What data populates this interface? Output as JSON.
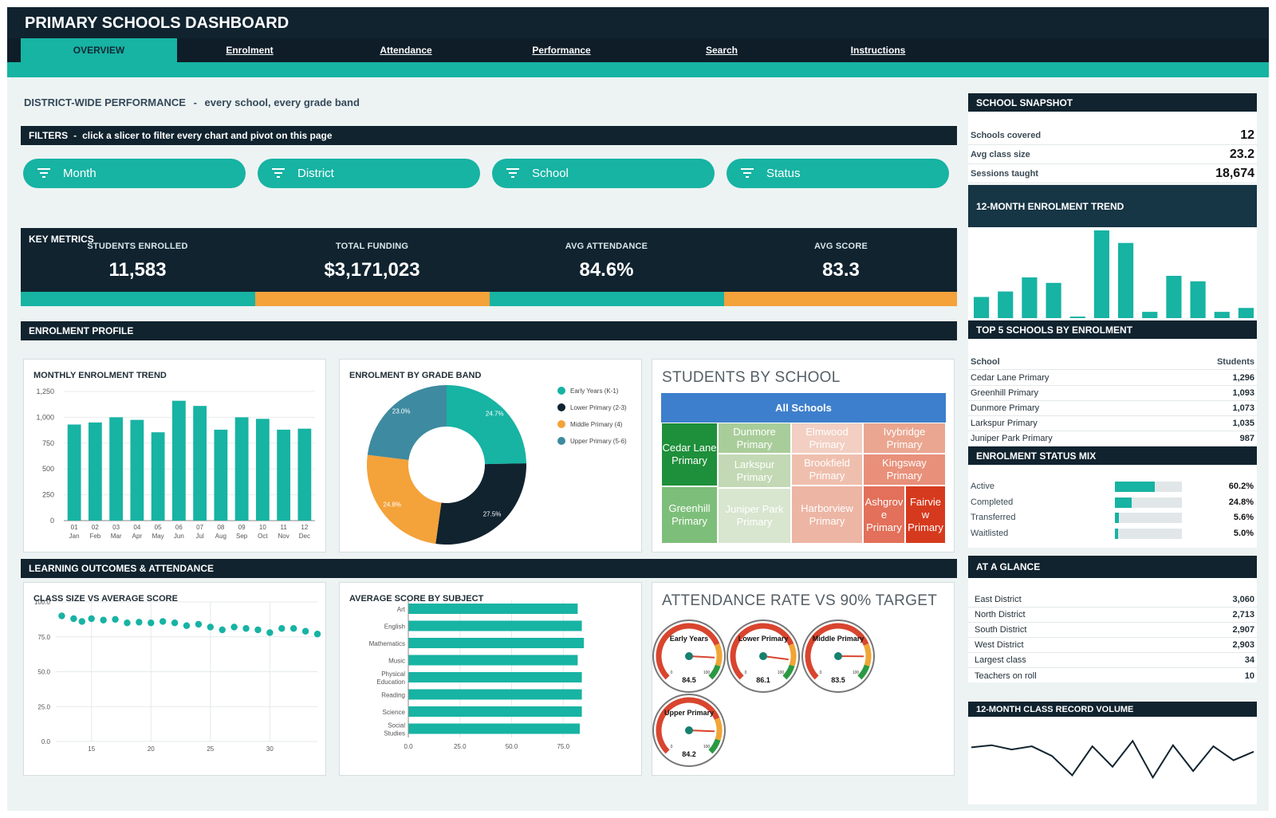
{
  "app": {
    "title": "PRIMARY SCHOOLS DASHBOARD"
  },
  "nav": {
    "tabs": [
      {
        "label": "OVERVIEW",
        "active": true
      },
      {
        "label": "Enrolment"
      },
      {
        "label": "Attendance"
      },
      {
        "label": "Performance"
      },
      {
        "label": "Search"
      },
      {
        "label": "Instructions"
      }
    ]
  },
  "page": {
    "heading": "DISTRICT-WIDE PERFORMANCE",
    "subheading": "every school, every grade band"
  },
  "filters": {
    "title": "FILTERS",
    "hint": "click a slicer to filter every chart and pivot on this page",
    "slicers": [
      "Month",
      "District",
      "School",
      "Status"
    ]
  },
  "key_metrics": {
    "title": "KEY METRICS",
    "items": [
      {
        "label": "STUDENTS ENROLLED",
        "value": "11,583"
      },
      {
        "label": "TOTAL FUNDING",
        "value": "$3,171,023"
      },
      {
        "label": "AVG ATTENDANCE",
        "value": "84.6%"
      },
      {
        "label": "AVG SCORE",
        "value": "83.3"
      }
    ],
    "band_colors": [
      "#17b3a3",
      "#f4a23a",
      "#17b3a3",
      "#f4a23a"
    ]
  },
  "sections": {
    "enrolment_profile": "ENROLMENT PROFILE",
    "learning": "LEARNING OUTCOMES & ATTENDANCE"
  },
  "colors": {
    "teal": "#17b3a3",
    "navy": "#10232f",
    "orange": "#f4a23a",
    "slate": "#3e8aa0"
  },
  "chart_data": [
    {
      "id": "monthly",
      "type": "bar",
      "title": "MONTHLY ENROLMENT TREND",
      "categories": [
        "01",
        "02",
        "03",
        "04",
        "05",
        "06",
        "07",
        "08",
        "09",
        "10",
        "11",
        "12"
      ],
      "sublabels": [
        "Jan",
        "Feb",
        "Mar",
        "Apr",
        "May",
        "Jun",
        "Jul",
        "Aug",
        "Sep",
        "Oct",
        "Nov",
        "Dec"
      ],
      "values": [
        930,
        950,
        1000,
        975,
        855,
        1160,
        1110,
        880,
        1000,
        985,
        880,
        890
      ],
      "ylim": [
        0,
        1250
      ],
      "yticks": [
        "0",
        "250",
        "500",
        "750",
        "1,000",
        "1,250"
      ]
    },
    {
      "id": "gradeband",
      "type": "pie",
      "title": "ENROLMENT BY GRADE BAND",
      "slices": [
        {
          "name": "Early Years (K-1)",
          "value": 24.7,
          "label": "24.7%",
          "color": "#17b3a3"
        },
        {
          "name": "Lower Primary (2-3)",
          "value": 27.5,
          "label": "27.5%",
          "color": "#10232f"
        },
        {
          "name": "Middle Primary (4)",
          "value": 24.8,
          "label": "24.8%",
          "color": "#f4a23a"
        },
        {
          "name": "Upper Primary (5-6)",
          "value": 23.0,
          "label": "23.0%",
          "color": "#3e8aa0"
        }
      ]
    },
    {
      "id": "treemap",
      "type": "treemap",
      "title": "STUDENTS BY SCHOOL",
      "root": "All Schools",
      "items": [
        {
          "name": "Cedar Lane Primary",
          "color": "#1e8f3a"
        },
        {
          "name": "Greenhill Primary",
          "color": "#7dbf7a"
        },
        {
          "name": "Dunmore Primary",
          "color": "#a9cd9a"
        },
        {
          "name": "Larkspur Primary",
          "color": "#c3d9b5"
        },
        {
          "name": "Juniper Park Primary",
          "color": "#d8e5cf"
        },
        {
          "name": "Elmwood Primary",
          "color": "#f2cfc2"
        },
        {
          "name": "Brookfield Primary",
          "color": "#efbfae"
        },
        {
          "name": "Harborview Primary",
          "color": "#edb5a4"
        },
        {
          "name": "Ivybridge Primary",
          "color": "#eaa690"
        },
        {
          "name": "Kingsway Primary",
          "color": "#e8907a"
        },
        {
          "name": "Ashgrove Primary",
          "label_lines": [
            "Ashgrov",
            "e",
            "Primary"
          ],
          "color": "#e2705a"
        },
        {
          "name": "Fairview Primary",
          "label_lines": [
            "Fairvie",
            "w",
            "Primary"
          ],
          "color": "#d63a1e"
        }
      ]
    },
    {
      "id": "scatter",
      "type": "scatter",
      "title": "CLASS SIZE VS AVERAGE SCORE",
      "xlim": [
        12,
        34
      ],
      "ylim": [
        0,
        100
      ],
      "xticks": [
        15,
        20,
        25,
        30
      ],
      "yticks": [
        "0.0",
        "25.0",
        "50.0",
        "75.0",
        "100.0"
      ],
      "points": [
        [
          12.5,
          90
        ],
        [
          13.5,
          88
        ],
        [
          14.2,
          86
        ],
        [
          15,
          88
        ],
        [
          16,
          87
        ],
        [
          17,
          87.5
        ],
        [
          18,
          85
        ],
        [
          19,
          85.5
        ],
        [
          20,
          85
        ],
        [
          21,
          86
        ],
        [
          22,
          85
        ],
        [
          23,
          83
        ],
        [
          24,
          84
        ],
        [
          25,
          82
        ],
        [
          26,
          80
        ],
        [
          27,
          82
        ],
        [
          28,
          81
        ],
        [
          29,
          80
        ],
        [
          30,
          78
        ],
        [
          31,
          81
        ],
        [
          32,
          81
        ],
        [
          33,
          79
        ],
        [
          34,
          77
        ]
      ]
    },
    {
      "id": "subjects",
      "type": "bar",
      "orientation": "horizontal",
      "title": "AVERAGE SCORE BY SUBJECT",
      "categories": [
        "Art",
        "English",
        "Mathematics",
        "Music",
        "Physical Education",
        "Reading",
        "Science",
        "Social Studies"
      ],
      "values": [
        82,
        84,
        85,
        82,
        84,
        84,
        84,
        83
      ],
      "xlim": [
        0,
        100
      ],
      "xticks": [
        "0.0",
        "25.0",
        "50.0",
        "75.0"
      ]
    },
    {
      "id": "gauges",
      "type": "gauge",
      "title": "ATTENDANCE RATE VS 90% TARGET",
      "target": 90,
      "items": [
        {
          "name": "Early Years",
          "value": 84.5,
          "display": "84.5"
        },
        {
          "name": "Lower Primary",
          "value": 86.1,
          "display": "86.1"
        },
        {
          "name": "Middle Primary",
          "value": 83.5,
          "display": "83.5"
        },
        {
          "name": "Upper Primary",
          "value": 84.2,
          "display": "84.2"
        }
      ],
      "scale_min": "0",
      "scale_max": "100"
    },
    {
      "id": "enrol_trend",
      "type": "bar",
      "title": "12-MONTH ENROLMENT TREND",
      "values": [
        27,
        34,
        52,
        45,
        2,
        112,
        96,
        8,
        54,
        47,
        8,
        13
      ]
    },
    {
      "id": "record_volume",
      "type": "line",
      "title": "12-MONTH CLASS RECORD VOLUME",
      "values": [
        56,
        58,
        54,
        57,
        48,
        30,
        57,
        38,
        62,
        28,
        58,
        34,
        57,
        44,
        52
      ]
    }
  ],
  "snapshot": {
    "title": "SCHOOL SNAPSHOT",
    "rows": [
      {
        "label": "Schools covered",
        "value": "12"
      },
      {
        "label": "Avg class size",
        "value": "23.2"
      },
      {
        "label": "Sessions taught",
        "value": "18,674"
      }
    ]
  },
  "top5": {
    "title": "TOP 5 SCHOOLS BY ENROLMENT",
    "col_school": "School",
    "col_students": "Students",
    "rows": [
      {
        "school": "Cedar Lane Primary",
        "students": "1,296"
      },
      {
        "school": "Greenhill Primary",
        "students": "1,093"
      },
      {
        "school": "Dunmore Primary",
        "students": "1,073"
      },
      {
        "school": "Larkspur Primary",
        "students": "1,035"
      },
      {
        "school": "Juniper Park Primary",
        "students": "987"
      }
    ]
  },
  "status_mix": {
    "title": "ENROLMENT STATUS MIX",
    "rows": [
      {
        "label": "Active",
        "pct": 60.2,
        "display": "60.2%"
      },
      {
        "label": "Completed",
        "pct": 24.8,
        "display": "24.8%"
      },
      {
        "label": "Transferred",
        "pct": 5.6,
        "display": "5.6%"
      },
      {
        "label": "Waitlisted",
        "pct": 5.0,
        "display": "5.0%"
      }
    ]
  },
  "glance": {
    "title": "AT A GLANCE",
    "rows": [
      {
        "label": "East District",
        "value": "3,060"
      },
      {
        "label": "North District",
        "value": "2,713"
      },
      {
        "label": "South District",
        "value": "2,907"
      },
      {
        "label": "West District",
        "value": "2,903"
      },
      {
        "label": "Largest class",
        "value": "34"
      },
      {
        "label": "Teachers on roll",
        "value": "10"
      }
    ]
  }
}
